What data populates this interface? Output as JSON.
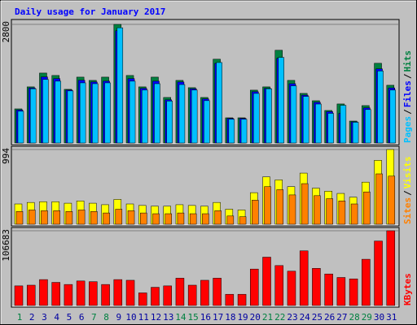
{
  "title": "Daily usage for January 2017",
  "legend_separator": "/",
  "chart_data": [
    {
      "type": "bar",
      "ylim": [
        0,
        2800
      ],
      "yticks": [
        2800
      ],
      "series": [
        {
          "name": "Hits",
          "color": "#008040",
          "values": [
            806,
            1325,
            1651,
            1594,
            1267,
            1555,
            1478,
            1555,
            2800,
            1594,
            1325,
            1555,
            1075,
            1478,
            1306,
            1075,
            1978,
            595,
            595,
            1248,
            1325,
            2189,
            1478,
            1171,
            998,
            768,
            922,
            518,
            883,
            1882,
            1363
          ]
        },
        {
          "name": "Files",
          "color": "#0000ff",
          "values": [
            780,
            1300,
            1560,
            1520,
            1250,
            1480,
            1440,
            1460,
            2650,
            1520,
            1290,
            1460,
            1020,
            1440,
            1280,
            1040,
            1880,
            580,
            580,
            1210,
            1290,
            2000,
            1400,
            1130,
            960,
            740,
            700,
            500,
            830,
            1750,
            1300
          ]
        },
        {
          "name": "Pages",
          "color": "#00c0ff",
          "values": [
            750,
            1280,
            1500,
            1460,
            1230,
            1420,
            1400,
            1420,
            2720,
            1460,
            1250,
            1400,
            990,
            1380,
            1250,
            1000,
            1900,
            560,
            560,
            1170,
            1280,
            2020,
            1350,
            1100,
            920,
            700,
            890,
            490,
            790,
            1700,
            1250
          ]
        }
      ]
    },
    {
      "type": "bar",
      "ylim": [
        0,
        994
      ],
      "yticks": [
        994
      ],
      "series": [
        {
          "name": "Visits",
          "color": "#ffff00",
          "values": [
            270,
            290,
            300,
            300,
            280,
            310,
            280,
            260,
            330,
            270,
            250,
            240,
            240,
            260,
            250,
            240,
            290,
            200,
            190,
            420,
            630,
            590,
            500,
            680,
            480,
            440,
            410,
            360,
            560,
            850,
            994
          ]
        },
        {
          "name": "Sites",
          "color": "#ff8000",
          "values": [
            170,
            190,
            180,
            180,
            170,
            190,
            170,
            150,
            200,
            180,
            150,
            140,
            140,
            150,
            140,
            140,
            180,
            110,
            100,
            320,
            500,
            460,
            390,
            540,
            380,
            340,
            310,
            270,
            430,
            670,
            640
          ]
        }
      ]
    },
    {
      "type": "bar",
      "ylim": [
        0,
        106683
      ],
      "yticks": [
        106683
      ],
      "categories": [
        1,
        2,
        3,
        4,
        5,
        6,
        7,
        8,
        9,
        10,
        11,
        12,
        13,
        14,
        15,
        16,
        17,
        18,
        19,
        20,
        21,
        22,
        23,
        24,
        25,
        26,
        27,
        28,
        29,
        30,
        31
      ],
      "category_colors": [
        "#008040",
        "#0000a0",
        "#0000a0",
        "#0000a0",
        "#0000a0",
        "#0000a0",
        "#008040",
        "#008040",
        "#0000a0",
        "#0000a0",
        "#0000a0",
        "#0000a0",
        "#0000a0",
        "#008040",
        "#008040",
        "#0000a0",
        "#0000a0",
        "#0000a0",
        "#0000a0",
        "#0000a0",
        "#008040",
        "#008040",
        "#0000a0",
        "#0000a0",
        "#0000a0",
        "#0000a0",
        "#0000a0",
        "#008040",
        "#008040",
        "#0000a0",
        "#0000a0"
      ],
      "series": [
        {
          "name": "KBytes",
          "color": "#ff0000",
          "values": [
            28000,
            29000,
            37000,
            33000,
            30000,
            35000,
            34000,
            30000,
            37000,
            36000,
            18000,
            26000,
            28000,
            39000,
            29000,
            36000,
            39000,
            16000,
            16000,
            52000,
            69000,
            57000,
            49000,
            78000,
            53000,
            45000,
            40000,
            38000,
            66000,
            92000,
            106683
          ]
        }
      ]
    }
  ]
}
